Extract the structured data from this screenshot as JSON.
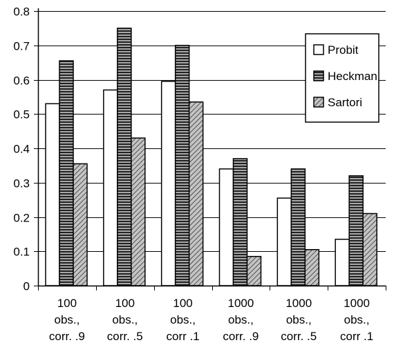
{
  "chart_data": {
    "type": "bar",
    "title": "",
    "xlabel": "",
    "ylabel": "",
    "ylim": [
      0,
      0.8
    ],
    "yticks": [
      "0",
      "0.1",
      "0.2",
      "0.3",
      "0.4",
      "0.5",
      "0.6",
      "0.7",
      "0.8"
    ],
    "grid": true,
    "legend_position": "top-right",
    "categories": [
      [
        "100",
        "obs.,",
        "corr. .9"
      ],
      [
        "100",
        "obs.,",
        "corr. .5"
      ],
      [
        "100",
        "obs.,",
        "corr .1"
      ],
      [
        "1000",
        "obs.,",
        "corr. .9"
      ],
      [
        "1000",
        "obs.,",
        "corr. .5"
      ],
      [
        "1000",
        "obs.,",
        "corr .1"
      ]
    ],
    "series": [
      {
        "name": "Probit",
        "pattern": "white",
        "values": [
          0.53,
          0.57,
          0.595,
          0.34,
          0.255,
          0.135
        ]
      },
      {
        "name": "Heckman",
        "pattern": "horizontal-lines",
        "values": [
          0.655,
          0.75,
          0.7,
          0.37,
          0.34,
          0.32
        ]
      },
      {
        "name": "Sartori",
        "pattern": "diagonal-lines",
        "values": [
          0.355,
          0.43,
          0.535,
          0.085,
          0.105,
          0.21
        ]
      }
    ]
  }
}
